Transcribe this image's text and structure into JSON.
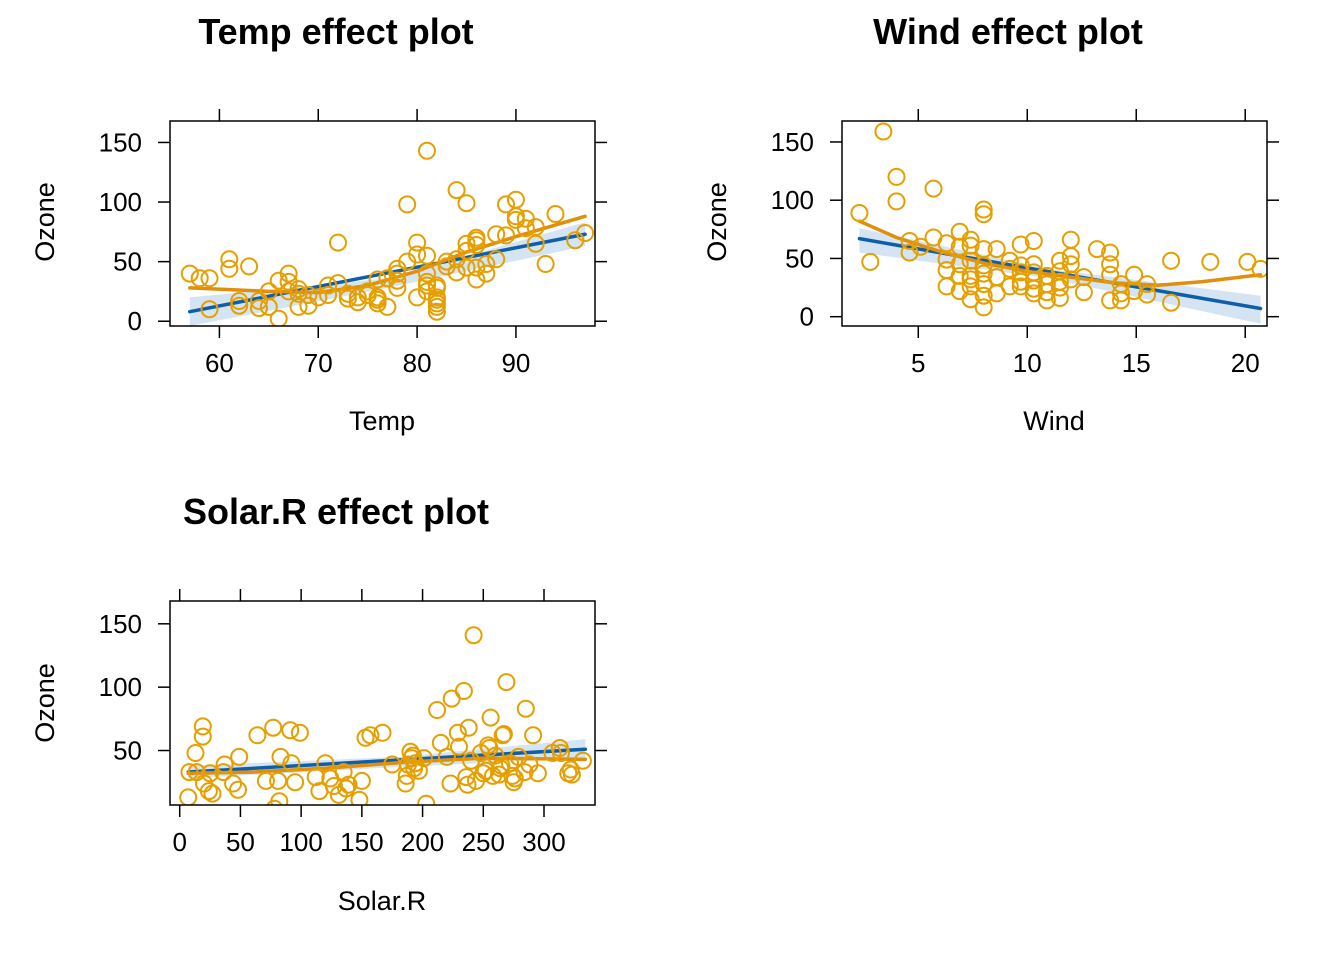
{
  "colors": {
    "point": "#E69F00",
    "fit": "#0F5FA8",
    "band": "#C6DBEF",
    "smooth": "#E08E0B",
    "axis": "#000000"
  },
  "chart_data": [
    {
      "type": "scatter",
      "title": "Temp effect plot",
      "xlabel": "Temp",
      "ylabel": "Ozone",
      "xlim": [
        55,
        98
      ],
      "ylim": [
        -4,
        168
      ],
      "xticks": [
        60,
        70,
        80,
        90
      ],
      "yticks": [
        0,
        50,
        100,
        150
      ],
      "fit_line": [
        [
          57,
          8
        ],
        [
          97,
          73
        ]
      ],
      "band": {
        "x": [
          57,
          77,
          97
        ],
        "lower": [
          -4,
          28,
          63
        ],
        "upper": [
          20,
          36,
          83
        ]
      },
      "smooth": [
        [
          57,
          28
        ],
        [
          65,
          25
        ],
        [
          70,
          24
        ],
        [
          75,
          30
        ],
        [
          80,
          42
        ],
        [
          85,
          58
        ],
        [
          90,
          71
        ],
        [
          97,
          88
        ]
      ],
      "points": [
        [
          57,
          40
        ],
        [
          58,
          36
        ],
        [
          59,
          36
        ],
        [
          59,
          10
        ],
        [
          61,
          44
        ],
        [
          61,
          52
        ],
        [
          62,
          13
        ],
        [
          62,
          17
        ],
        [
          63,
          46
        ],
        [
          64,
          17
        ],
        [
          64,
          11
        ],
        [
          65,
          25
        ],
        [
          65,
          12
        ],
        [
          66,
          2
        ],
        [
          66,
          34
        ],
        [
          67,
          40
        ],
        [
          67,
          33
        ],
        [
          67,
          25
        ],
        [
          68,
          27
        ],
        [
          68,
          12
        ],
        [
          68,
          23
        ],
        [
          69,
          13
        ],
        [
          69,
          22
        ],
        [
          70,
          20
        ],
        [
          71,
          22
        ],
        [
          71,
          30
        ],
        [
          72,
          66
        ],
        [
          72,
          32
        ],
        [
          73,
          23
        ],
        [
          73,
          19
        ],
        [
          74,
          20
        ],
        [
          74,
          16
        ],
        [
          75,
          25
        ],
        [
          75,
          22
        ],
        [
          76,
          15
        ],
        [
          76,
          20
        ],
        [
          76,
          35
        ],
        [
          76,
          18
        ],
        [
          77,
          12
        ],
        [
          77,
          36
        ],
        [
          78,
          40
        ],
        [
          78,
          34
        ],
        [
          78,
          28
        ],
        [
          78,
          44
        ],
        [
          79,
          50
        ],
        [
          79,
          98
        ],
        [
          80,
          20
        ],
        [
          80,
          66
        ],
        [
          80,
          56
        ],
        [
          81,
          143
        ],
        [
          81,
          30
        ],
        [
          81,
          33
        ],
        [
          81,
          40
        ],
        [
          81,
          55
        ],
        [
          81,
          25
        ],
        [
          82,
          20
        ],
        [
          82,
          8
        ],
        [
          82,
          12
        ],
        [
          82,
          30
        ],
        [
          82,
          15
        ],
        [
          82,
          18
        ],
        [
          82,
          28
        ],
        [
          83,
          50
        ],
        [
          83,
          46
        ],
        [
          84,
          110
        ],
        [
          84,
          41
        ],
        [
          84,
          52
        ],
        [
          85,
          99
        ],
        [
          85,
          59
        ],
        [
          85,
          45
        ],
        [
          85,
          65
        ],
        [
          86,
          68
        ],
        [
          86,
          70
        ],
        [
          86,
          35
        ],
        [
          86,
          45
        ],
        [
          86,
          64
        ],
        [
          87,
          40
        ],
        [
          87,
          48
        ],
        [
          88,
          73
        ],
        [
          88,
          52
        ],
        [
          89,
          98
        ],
        [
          89,
          72
        ],
        [
          90,
          102
        ],
        [
          90,
          88
        ],
        [
          90,
          85
        ],
        [
          91,
          78
        ],
        [
          91,
          86
        ],
        [
          92,
          79
        ],
        [
          92,
          65
        ],
        [
          93,
          48
        ],
        [
          94,
          90
        ],
        [
          96,
          68
        ],
        [
          97,
          74
        ]
      ]
    },
    {
      "type": "scatter",
      "title": "Wind effect plot",
      "xlabel": "Wind",
      "ylabel": "Ozone",
      "xlim": [
        1.5,
        21
      ],
      "ylim": [
        -8,
        168
      ],
      "xticks": [
        5,
        10,
        15,
        20
      ],
      "yticks": [
        0,
        50,
        100,
        150
      ],
      "fit_line": [
        [
          2.3,
          67
        ],
        [
          20.7,
          7
        ]
      ],
      "band": {
        "x": [
          2.3,
          11,
          20.7
        ],
        "lower": [
          55,
          33,
          -6
        ],
        "upper": [
          76,
          41,
          18
        ]
      },
      "smooth": [
        [
          2.3,
          82
        ],
        [
          4,
          68
        ],
        [
          6,
          56
        ],
        [
          8,
          46
        ],
        [
          10,
          39
        ],
        [
          12,
          34
        ],
        [
          14,
          29
        ],
        [
          16,
          27
        ],
        [
          18,
          30
        ],
        [
          20.7,
          36
        ]
      ],
      "points": [
        [
          2.3,
          89
        ],
        [
          2.8,
          47
        ],
        [
          3.4,
          159
        ],
        [
          4,
          120
        ],
        [
          4,
          99
        ],
        [
          4.6,
          65
        ],
        [
          4.6,
          55
        ],
        [
          5.1,
          60
        ],
        [
          5.7,
          110
        ],
        [
          5.7,
          68
        ],
        [
          6.3,
          63
        ],
        [
          6.3,
          49
        ],
        [
          6.3,
          40
        ],
        [
          6.3,
          26
        ],
        [
          6.9,
          73
        ],
        [
          6.9,
          60
        ],
        [
          6.9,
          45
        ],
        [
          6.9,
          35
        ],
        [
          6.9,
          22
        ],
        [
          7.4,
          66
        ],
        [
          7.4,
          61
        ],
        [
          7.4,
          48
        ],
        [
          7.4,
          35
        ],
        [
          7.4,
          32
        ],
        [
          7.4,
          26
        ],
        [
          7.4,
          15
        ],
        [
          8,
          92
        ],
        [
          8,
          88
        ],
        [
          8,
          58
        ],
        [
          8,
          44
        ],
        [
          8,
          37
        ],
        [
          8,
          28
        ],
        [
          8,
          18
        ],
        [
          8,
          8
        ],
        [
          8.6,
          58
        ],
        [
          8.6,
          34
        ],
        [
          8.6,
          20
        ],
        [
          9.2,
          48
        ],
        [
          9.2,
          41
        ],
        [
          9.2,
          26
        ],
        [
          9.7,
          62
        ],
        [
          9.7,
          44
        ],
        [
          9.7,
          38
        ],
        [
          9.7,
          30
        ],
        [
          9.7,
          26
        ],
        [
          10.3,
          65
        ],
        [
          10.3,
          45
        ],
        [
          10.3,
          38
        ],
        [
          10.3,
          31
        ],
        [
          10.3,
          24
        ],
        [
          10.3,
          20
        ],
        [
          10.9,
          35
        ],
        [
          10.9,
          28
        ],
        [
          10.9,
          21
        ],
        [
          10.9,
          14
        ],
        [
          11.5,
          48
        ],
        [
          11.5,
          39
        ],
        [
          11.5,
          30
        ],
        [
          11.5,
          25
        ],
        [
          11.5,
          16
        ],
        [
          12,
          66
        ],
        [
          12,
          52
        ],
        [
          12,
          45
        ],
        [
          12,
          32
        ],
        [
          12.6,
          34
        ],
        [
          12.6,
          21
        ],
        [
          13.2,
          58
        ],
        [
          13.8,
          55
        ],
        [
          13.8,
          45
        ],
        [
          13.8,
          36
        ],
        [
          13.8,
          14
        ],
        [
          14.3,
          28
        ],
        [
          14.3,
          20
        ],
        [
          14.3,
          14
        ],
        [
          14.9,
          36
        ],
        [
          14.9,
          22
        ],
        [
          15.5,
          28
        ],
        [
          15.5,
          19
        ],
        [
          16.6,
          48
        ],
        [
          16.6,
          12
        ],
        [
          18.4,
          47
        ],
        [
          20.1,
          47
        ],
        [
          20.7,
          41
        ]
      ]
    },
    {
      "type": "scatter",
      "title": "Solar.R effect plot",
      "xlabel": "Solar.R",
      "ylabel": "Ozone",
      "xlim": [
        -8,
        342
      ],
      "ylim": [
        7,
        168
      ],
      "xticks": [
        0,
        50,
        100,
        150,
        200,
        250,
        300
      ],
      "yticks": [
        50,
        100,
        150
      ],
      "fit_line": [
        [
          7,
          33
        ],
        [
          334,
          51
        ]
      ],
      "band": {
        "x": [
          7,
          180,
          334
        ],
        "lower": [
          28,
          37,
          44
        ],
        "upper": [
          38,
          45,
          59
        ]
      },
      "smooth": [
        [
          7,
          32
        ],
        [
          60,
          33
        ],
        [
          120,
          36
        ],
        [
          190,
          41
        ],
        [
          250,
          44
        ],
        [
          334,
          43
        ]
      ],
      "points": [
        [
          7,
          13
        ],
        [
          8,
          33
        ],
        [
          13,
          48
        ],
        [
          14,
          33
        ],
        [
          19,
          69
        ],
        [
          19,
          61
        ],
        [
          20,
          24
        ],
        [
          24,
          18
        ],
        [
          25,
          32
        ],
        [
          27,
          16
        ],
        [
          36,
          33
        ],
        [
          37,
          39
        ],
        [
          44,
          24
        ],
        [
          48,
          19
        ],
        [
          49,
          45
        ],
        [
          64,
          62
        ],
        [
          71,
          26
        ],
        [
          77,
          68
        ],
        [
          78,
          4
        ],
        [
          81,
          26
        ],
        [
          82,
          10
        ],
        [
          83,
          45
        ],
        [
          91,
          66
        ],
        [
          92,
          40
        ],
        [
          95,
          25
        ],
        [
          99,
          64
        ],
        [
          112,
          29
        ],
        [
          115,
          18
        ],
        [
          120,
          40
        ],
        [
          124,
          28
        ],
        [
          127,
          22
        ],
        [
          131,
          15
        ],
        [
          135,
          33
        ],
        [
          137,
          20
        ],
        [
          139,
          23
        ],
        [
          148,
          11
        ],
        [
          150,
          26
        ],
        [
          153,
          60
        ],
        [
          157,
          62
        ],
        [
          167,
          64
        ],
        [
          175,
          39
        ],
        [
          186,
          24
        ],
        [
          187,
          30
        ],
        [
          188,
          39
        ],
        [
          190,
          49
        ],
        [
          191,
          44
        ],
        [
          192,
          46
        ],
        [
          193,
          36
        ],
        [
          194,
          40
        ],
        [
          197,
          34
        ],
        [
          201,
          44
        ],
        [
          203,
          8
        ],
        [
          212,
          82
        ],
        [
          215,
          56
        ],
        [
          220,
          45
        ],
        [
          223,
          24
        ],
        [
          224,
          91
        ],
        [
          229,
          64
        ],
        [
          230,
          53
        ],
        [
          234,
          97
        ],
        [
          236,
          29
        ],
        [
          237,
          23
        ],
        [
          238,
          68
        ],
        [
          240,
          42
        ],
        [
          242,
          141
        ],
        [
          244,
          26
        ],
        [
          248,
          48
        ],
        [
          250,
          32
        ],
        [
          252,
          34
        ],
        [
          254,
          54
        ],
        [
          255,
          52
        ],
        [
          256,
          76
        ],
        [
          258,
          30
        ],
        [
          260,
          46
        ],
        [
          263,
          31
        ],
        [
          264,
          36
        ],
        [
          265,
          38
        ],
        [
          266,
          62
        ],
        [
          267,
          63
        ],
        [
          269,
          104
        ],
        [
          272,
          40
        ],
        [
          274,
          30
        ],
        [
          275,
          25
        ],
        [
          276,
          28
        ],
        [
          279,
          45
        ],
        [
          284,
          33
        ],
        [
          285,
          83
        ],
        [
          288,
          39
        ],
        [
          291,
          62
        ],
        [
          295,
          32
        ],
        [
          307,
          48
        ],
        [
          313,
          52
        ],
        [
          314,
          48
        ],
        [
          320,
          32
        ],
        [
          322,
          35
        ],
        [
          323,
          31
        ],
        [
          332,
          42
        ]
      ]
    }
  ]
}
